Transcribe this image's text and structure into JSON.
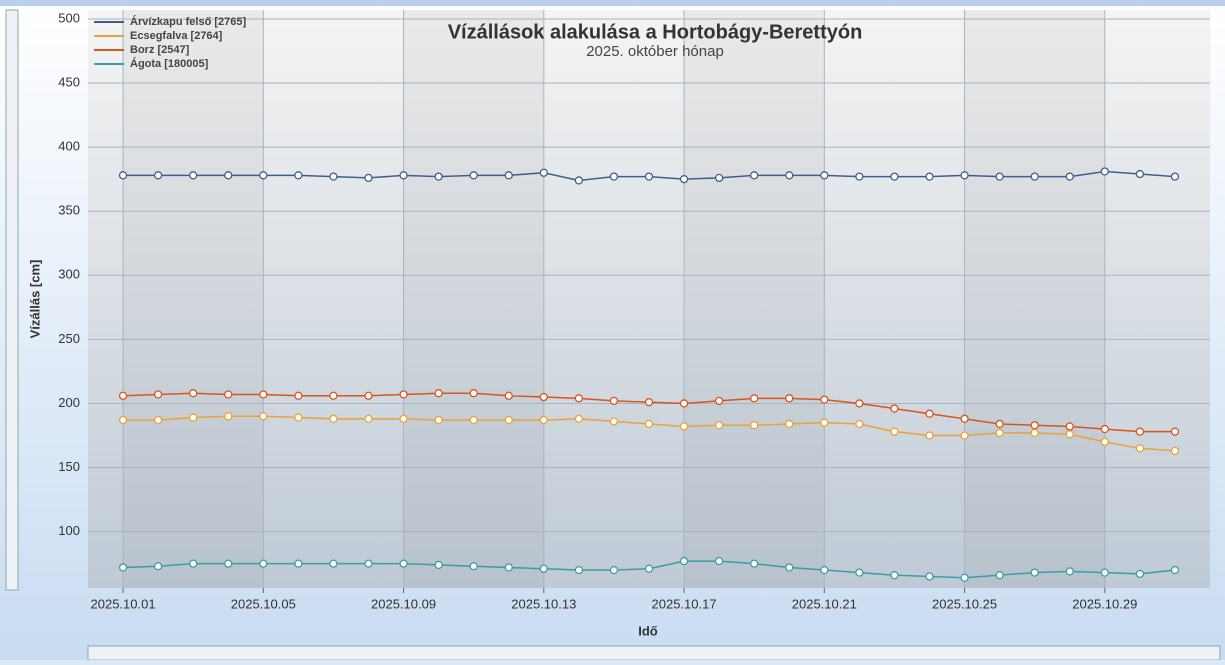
{
  "chart_data": {
    "type": "line",
    "title": "Vízállások alakulása a Hortobágy-Berettyón",
    "subtitle": "2025. október hónap",
    "xlabel": "Idő",
    "ylabel": "Vízállás [cm]",
    "x": [
      "2025.10.01",
      "2025.10.02",
      "2025.10.03",
      "2025.10.04",
      "2025.10.05",
      "2025.10.06",
      "2025.10.07",
      "2025.10.08",
      "2025.10.09",
      "2025.10.10",
      "2025.10.11",
      "2025.10.12",
      "2025.10.13",
      "2025.10.14",
      "2025.10.15",
      "2025.10.16",
      "2025.10.17",
      "2025.10.18",
      "2025.10.19",
      "2025.10.20",
      "2025.10.21",
      "2025.10.22",
      "2025.10.23",
      "2025.10.24",
      "2025.10.25",
      "2025.10.26",
      "2025.10.27",
      "2025.10.28",
      "2025.10.29",
      "2025.10.30",
      "2025.10.31"
    ],
    "series": [
      {
        "name": "Árvízkapu felső [2765]",
        "color": "#3e5f8e",
        "values": [
          378,
          378,
          378,
          378,
          378,
          378,
          377,
          376,
          378,
          377,
          378,
          378,
          380,
          374,
          377,
          377,
          375,
          376,
          378,
          378,
          378,
          377,
          377,
          377,
          378,
          377,
          377,
          377,
          381,
          379,
          377
        ]
      },
      {
        "name": "Ecsegfalva [2764]",
        "color": "#eaa23a",
        "values": [
          187,
          187,
          189,
          190,
          190,
          189,
          188,
          188,
          188,
          187,
          187,
          187,
          187,
          188,
          186,
          184,
          182,
          183,
          183,
          184,
          185,
          184,
          178,
          175,
          175,
          177,
          177,
          176,
          170,
          165,
          163
        ]
      },
      {
        "name": "Borz [2547]",
        "color": "#d9541e",
        "values": [
          206,
          207,
          208,
          207,
          207,
          206,
          206,
          206,
          207,
          208,
          208,
          206,
          205,
          204,
          202,
          201,
          200,
          202,
          204,
          204,
          203,
          200,
          196,
          192,
          188,
          184,
          183,
          182,
          180,
          178,
          178
        ]
      },
      {
        "name": "Ágota [180005]",
        "color": "#3a9ea5",
        "values": [
          72,
          73,
          75,
          75,
          75,
          75,
          75,
          75,
          75,
          74,
          73,
          72,
          71,
          70,
          70,
          71,
          77,
          77,
          75,
          72,
          70,
          68,
          66,
          65,
          64,
          66,
          68,
          69,
          68,
          67,
          70
        ]
      }
    ],
    "xlim": [
      "2025.09.30",
      "2025.11.01"
    ],
    "xticks": [
      "2025.10.01",
      "2025.10.05",
      "2025.10.09",
      "2025.10.13",
      "2025.10.17",
      "2025.10.21",
      "2025.10.25",
      "2025.10.29"
    ],
    "ylim": [
      56,
      507
    ],
    "yticks": [
      100,
      150,
      200,
      250,
      300,
      350,
      400,
      450,
      500
    ],
    "grid": true,
    "legend": "upper left"
  }
}
